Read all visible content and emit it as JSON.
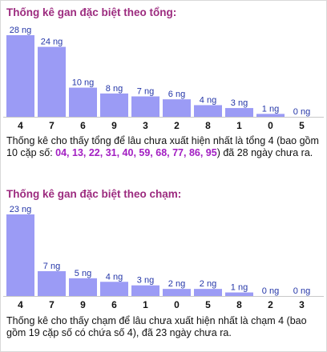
{
  "colors": {
    "title": "#9c2b7f",
    "bar": "#9b9bf5",
    "value_label": "#2436a8",
    "category_label": "#111111",
    "highlight_codes": "#a21ec2"
  },
  "sections": [
    {
      "title": "Thống kê gan đặc biệt theo tổng:",
      "desc_prefix": "Thống kê cho thấy tổng để lâu chưa xuất hiện nhất là tổng 4 (bao gồm 10 cặp số: ",
      "desc_codes": "04, 13, 22, 31, 40, 59, 68, 77, 86, 95",
      "desc_suffix": ") đã 28 ngày chưa ra."
    },
    {
      "title": "Thống kê gan đặc biệt theo chạm:",
      "desc_prefix": "Thống kê cho thấy chạm để lâu chưa xuất hiện nhất là chạm 4 (bao gồm 19 cặp số có chứa số 4), đã 23 ngày chưa ra.",
      "desc_codes": "",
      "desc_suffix": ""
    }
  ],
  "chart_data": [
    {
      "type": "bar",
      "title": "Thống kê gan đặc biệt theo tổng:",
      "categories": [
        "4",
        "7",
        "6",
        "9",
        "3",
        "2",
        "8",
        "1",
        "0",
        "5"
      ],
      "values": [
        28,
        24,
        10,
        8,
        7,
        6,
        4,
        3,
        1,
        0
      ],
      "value_labels": [
        "28 ng",
        "24 ng",
        "10 ng",
        "8 ng",
        "7 ng",
        "6 ng",
        "4 ng",
        "3 ng",
        "1 ng",
        "0 ng"
      ],
      "ylim": [
        0,
        28
      ],
      "grid": false
    },
    {
      "type": "bar",
      "title": "Thống kê gan đặc biệt theo chạm:",
      "categories": [
        "4",
        "7",
        "9",
        "6",
        "1",
        "0",
        "5",
        "8",
        "2",
        "3"
      ],
      "values": [
        23,
        7,
        5,
        4,
        3,
        2,
        2,
        1,
        0,
        0
      ],
      "value_labels": [
        "23 ng",
        "7 ng",
        "5 ng",
        "4 ng",
        "3 ng",
        "2 ng",
        "2 ng",
        "1 ng",
        "0 ng",
        "0 ng"
      ],
      "ylim": [
        0,
        23
      ],
      "grid": false
    }
  ]
}
